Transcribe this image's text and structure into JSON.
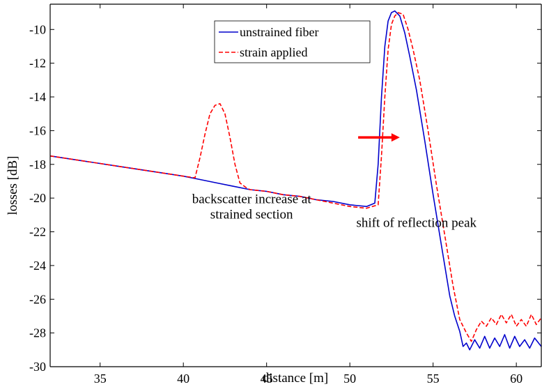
{
  "chart_data": {
    "type": "line",
    "title": "",
    "xlabel": "distance [m]",
    "ylabel": "losses [dB]",
    "xlim": [
      32,
      61.5
    ],
    "ylim": [
      -30,
      -8.5
    ],
    "x_ticks": [
      35,
      40,
      45,
      50,
      55,
      60
    ],
    "y_ticks": [
      -30,
      -28,
      -26,
      -24,
      -22,
      -20,
      -18,
      -16,
      -14,
      -12,
      -10
    ],
    "grid": false,
    "legend_position": "top-center",
    "series": [
      {
        "name": "unstrained fiber",
        "color": "#0000cc",
        "style": "solid",
        "x": [
          32,
          34,
          36,
          38,
          40,
          41,
          42,
          43,
          44,
          45,
          46,
          47,
          48,
          49,
          50,
          51,
          51.5,
          51.7,
          51.9,
          52.1,
          52.3,
          52.5,
          52.7,
          53.0,
          53.3,
          53.6,
          54.0,
          54.5,
          55.0,
          55.5,
          56.0,
          56.3,
          56.6,
          56.8,
          57.0,
          57.2,
          57.5,
          57.8,
          58.1,
          58.4,
          58.7,
          59.0,
          59.3,
          59.6,
          59.9,
          60.2,
          60.5,
          60.8,
          61.1,
          61.5
        ],
        "y": [
          -17.5,
          -17.8,
          -18.1,
          -18.4,
          -18.7,
          -18.9,
          -19.1,
          -19.3,
          -19.5,
          -19.6,
          -19.8,
          -19.9,
          -20.1,
          -20.2,
          -20.4,
          -20.5,
          -20.3,
          -18.0,
          -14.0,
          -11.0,
          -9.5,
          -9.0,
          -8.9,
          -9.2,
          -10.2,
          -11.6,
          -13.6,
          -16.6,
          -19.8,
          -22.8,
          -25.8,
          -27.0,
          -27.9,
          -28.8,
          -28.6,
          -29.0,
          -28.4,
          -28.9,
          -28.2,
          -28.9,
          -28.3,
          -28.8,
          -28.1,
          -28.9,
          -28.2,
          -28.8,
          -28.4,
          -28.9,
          -28.3,
          -28.8
        ]
      },
      {
        "name": "strain applied",
        "color": "#ff0000",
        "style": "dashed",
        "x": [
          32,
          34,
          36,
          38,
          40,
          40.7,
          41.0,
          41.3,
          41.6,
          41.9,
          42.2,
          42.5,
          42.8,
          43.1,
          43.4,
          43.8,
          44,
          45,
          46,
          47,
          48,
          49,
          50,
          51,
          51.7,
          51.9,
          52.1,
          52.3,
          52.5,
          52.7,
          52.9,
          53.2,
          53.5,
          53.8,
          54.2,
          54.7,
          55.2,
          55.7,
          56.2,
          56.6,
          57.0,
          57.3,
          57.6,
          57.9,
          58.2,
          58.5,
          58.8,
          59.1,
          59.4,
          59.7,
          60.0,
          60.3,
          60.6,
          60.9,
          61.2,
          61.5
        ],
        "y": [
          -17.5,
          -17.8,
          -18.1,
          -18.4,
          -18.7,
          -18.8,
          -17.6,
          -16.2,
          -15.0,
          -14.5,
          -14.4,
          -15.0,
          -16.4,
          -18.0,
          -19.1,
          -19.4,
          -19.5,
          -19.6,
          -19.8,
          -19.9,
          -20.1,
          -20.3,
          -20.5,
          -20.6,
          -20.4,
          -17.5,
          -14.0,
          -11.2,
          -9.7,
          -9.2,
          -9.0,
          -9.1,
          -10.0,
          -11.2,
          -13.0,
          -16.0,
          -19.2,
          -22.2,
          -25.2,
          -27.2,
          -28.0,
          -28.5,
          -27.8,
          -27.3,
          -27.6,
          -27.1,
          -27.5,
          -26.9,
          -27.4,
          -26.9,
          -27.6,
          -27.2,
          -27.6,
          -26.9,
          -27.5,
          -27.1
        ]
      }
    ],
    "annotations": [
      {
        "id": "backscatter",
        "lines": [
          "backscatter increase at",
          "strained section"
        ],
        "x": 44.1,
        "y": -20.3
      },
      {
        "id": "shift",
        "lines": [
          "shift of reflection peak"
        ],
        "x": 54.0,
        "y": -21.7
      }
    ],
    "arrow": {
      "from": [
        50.5,
        -16.4
      ],
      "to": [
        53.0,
        -16.4
      ],
      "color": "#ff0000"
    }
  }
}
